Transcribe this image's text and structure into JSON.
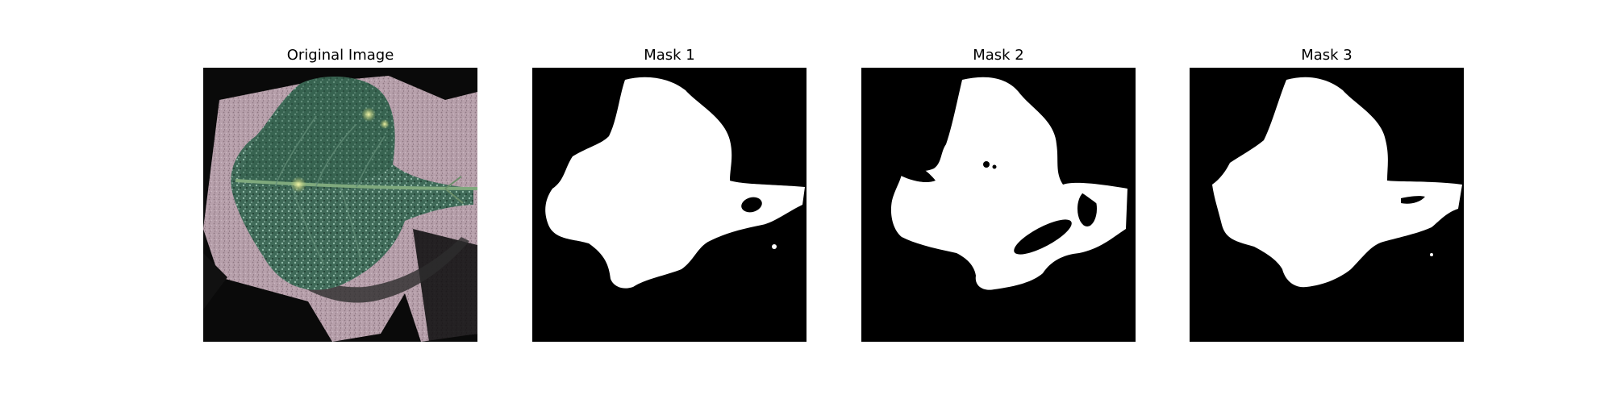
{
  "figure": {
    "panels": [
      {
        "title": "Original Image",
        "kind": "photo",
        "subject": "leaf-photo"
      },
      {
        "title": "Mask 1",
        "kind": "mask",
        "colors": {
          "background": "#000000",
          "foreground": "#ffffff"
        }
      },
      {
        "title": "Mask 2",
        "kind": "mask",
        "colors": {
          "background": "#000000",
          "foreground": "#ffffff"
        }
      },
      {
        "title": "Mask 3",
        "kind": "mask",
        "colors": {
          "background": "#000000",
          "foreground": "#ffffff"
        }
      }
    ]
  }
}
